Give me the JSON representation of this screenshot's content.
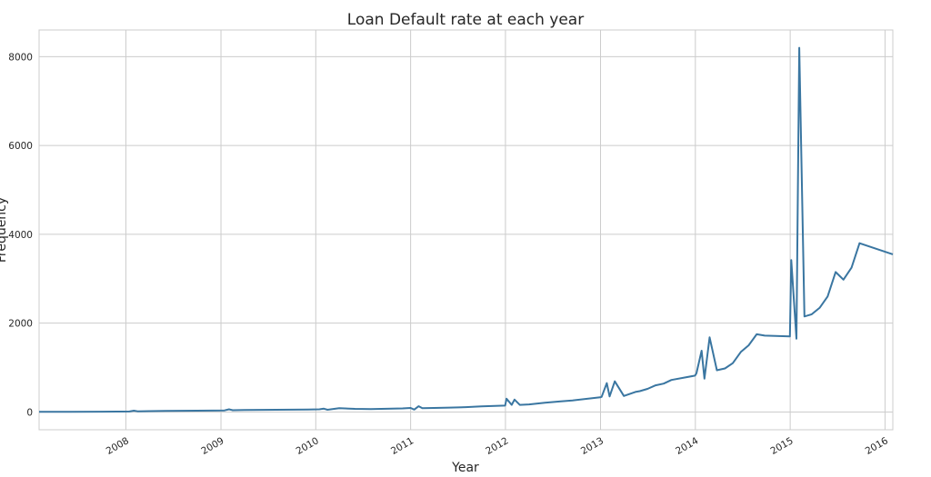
{
  "chart_data": {
    "type": "line",
    "title": "Loan Default rate at each year",
    "xlabel": "Year",
    "ylabel": "Frequency",
    "x_axis": "date",
    "xlim": [
      "2007-02-01",
      "2016-01-31"
    ],
    "ylim": [
      -400,
      8600
    ],
    "grid": true,
    "legend": "none",
    "y_ticks": [
      0,
      2000,
      4000,
      6000,
      8000
    ],
    "x_ticks": [
      "2008",
      "2009",
      "2010",
      "2011",
      "2012",
      "2013",
      "2014",
      "2015",
      "2016"
    ],
    "colors": {
      "line": "#3a76a1",
      "grid": "#cccccc"
    },
    "series": [
      {
        "x": [
          "2007-02-01",
          "2007-06-01",
          "2007-10-01",
          "2007-12-01",
          "2008-01-15",
          "2008-02-01",
          "2008-02-15",
          "2008-04-01",
          "2008-06-01",
          "2008-08-01",
          "2008-10-01",
          "2008-12-01",
          "2009-01-15",
          "2009-02-01",
          "2009-02-15",
          "2009-04-01",
          "2009-06-01",
          "2009-08-01",
          "2009-10-01",
          "2009-12-01",
          "2010-01-15",
          "2010-02-01",
          "2010-02-15",
          "2010-04-01",
          "2010-06-01",
          "2010-08-01",
          "2010-10-01",
          "2010-12-01",
          "2011-01-01",
          "2011-01-15",
          "2011-02-01",
          "2011-02-15",
          "2011-04-01",
          "2011-06-01",
          "2011-08-01",
          "2011-10-01",
          "2011-12-31",
          "2012-01-05",
          "2012-01-25",
          "2012-02-05",
          "2012-02-25",
          "2012-04-01",
          "2012-06-01",
          "2012-08-01",
          "2012-09-15",
          "2012-12-31",
          "2013-01-05",
          "2013-01-25",
          "2013-02-05",
          "2013-02-25",
          "2013-04-01",
          "2013-05-15",
          "2013-06-01",
          "2013-07-01",
          "2013-08-01",
          "2013-09-01",
          "2013-10-01",
          "2013-12-31",
          "2014-01-05",
          "2014-01-25",
          "2014-02-05",
          "2014-02-25",
          "2014-03-25",
          "2014-04-25",
          "2014-05-25",
          "2014-06-25",
          "2014-07-25",
          "2014-08-25",
          "2014-09-25",
          "2014-12-31",
          "2015-01-05",
          "2015-01-25",
          "2015-02-05",
          "2015-02-25",
          "2015-03-25",
          "2015-04-25",
          "2015-05-25",
          "2015-06-25",
          "2015-07-25",
          "2015-08-25",
          "2015-09-25",
          "2016-01-31"
        ],
        "y": [
          5,
          5,
          8,
          10,
          12,
          30,
          15,
          20,
          25,
          28,
          30,
          32,
          35,
          60,
          40,
          45,
          48,
          50,
          52,
          55,
          60,
          75,
          50,
          85,
          70,
          65,
          72,
          80,
          90,
          55,
          130,
          85,
          90,
          100,
          110,
          125,
          145,
          300,
          160,
          280,
          160,
          170,
          210,
          240,
          260,
          330,
          340,
          650,
          350,
          690,
          360,
          450,
          470,
          520,
          600,
          640,
          720,
          820,
          870,
          1380,
          750,
          1680,
          940,
          980,
          1100,
          1350,
          1500,
          1750,
          1720,
          1700,
          3420,
          1650,
          8200,
          2150,
          2200,
          2350,
          2600,
          3150,
          2980,
          3250,
          3800,
          3550
        ]
      }
    ]
  }
}
